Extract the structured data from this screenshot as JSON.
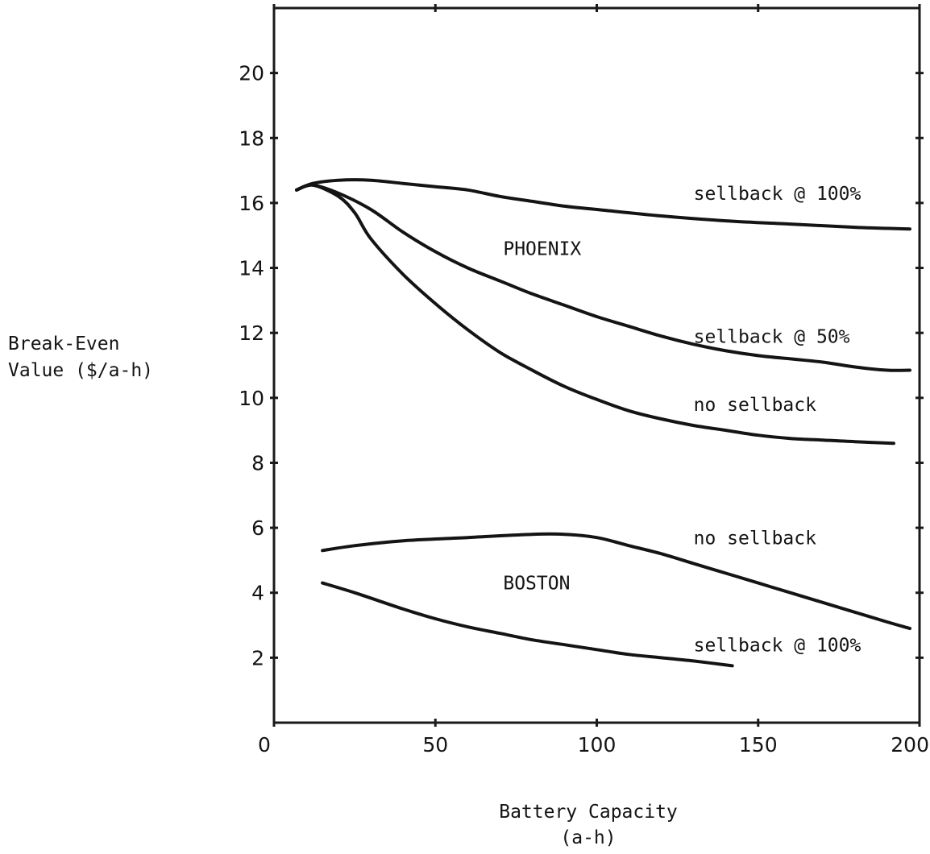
{
  "chart_data": {
    "type": "line",
    "title": "",
    "xlabel": [
      "Battery Capacity",
      "(a-h)"
    ],
    "ylabel": [
      "Break-Even",
      "Value ($/a-h)"
    ],
    "xlim": [
      0,
      200
    ],
    "ylim": [
      0,
      22
    ],
    "x_ticks": [
      "0",
      "50",
      "100",
      "150",
      "200"
    ],
    "y_ticks": [
      "2",
      "4",
      "6",
      "8",
      "10",
      "12",
      "14",
      "16",
      "18",
      "20"
    ],
    "grid": false,
    "legend": "none",
    "series": [
      {
        "group": "PHOENIX",
        "name": "sellback @ 100%",
        "x": [
          7,
          12,
          20,
          30,
          40,
          50,
          60,
          70,
          80,
          90,
          100,
          120,
          140,
          160,
          180,
          197
        ],
        "y": [
          16.4,
          16.6,
          16.7,
          16.7,
          16.6,
          16.5,
          16.4,
          16.2,
          16.05,
          15.9,
          15.8,
          15.6,
          15.45,
          15.35,
          15.25,
          15.2
        ]
      },
      {
        "group": "PHOENIX",
        "name": "sellback @ 50%",
        "x": [
          7,
          12,
          20,
          30,
          40,
          50,
          60,
          70,
          80,
          90,
          100,
          110,
          120,
          130,
          140,
          150,
          160,
          170,
          180,
          190,
          197
        ],
        "y": [
          16.4,
          16.55,
          16.3,
          15.8,
          15.1,
          14.5,
          14.0,
          13.6,
          13.2,
          12.85,
          12.5,
          12.2,
          11.9,
          11.65,
          11.45,
          11.3,
          11.2,
          11.1,
          10.95,
          10.85,
          10.85
        ]
      },
      {
        "group": "PHOENIX",
        "name": "no sellback",
        "x": [
          7,
          12,
          20,
          25,
          30,
          40,
          50,
          60,
          70,
          80,
          90,
          100,
          110,
          120,
          130,
          140,
          150,
          160,
          170,
          180,
          192
        ],
        "y": [
          16.4,
          16.55,
          16.2,
          15.7,
          14.9,
          13.8,
          12.9,
          12.1,
          11.4,
          10.85,
          10.35,
          9.95,
          9.6,
          9.35,
          9.15,
          9.0,
          8.85,
          8.75,
          8.7,
          8.65,
          8.6
        ]
      },
      {
        "group": "BOSTON",
        "name": "no sellback",
        "x": [
          15,
          25,
          40,
          60,
          80,
          90,
          100,
          110,
          120,
          130,
          140,
          150,
          160,
          170,
          180,
          190,
          197
        ],
        "y": [
          5.3,
          5.45,
          5.6,
          5.7,
          5.8,
          5.8,
          5.7,
          5.45,
          5.2,
          4.9,
          4.6,
          4.3,
          4.0,
          3.7,
          3.4,
          3.1,
          2.9
        ]
      },
      {
        "group": "BOSTON",
        "name": "sellback @ 100%",
        "x": [
          15,
          25,
          40,
          50,
          60,
          70,
          80,
          90,
          100,
          110,
          120,
          130,
          142
        ],
        "y": [
          4.3,
          4.0,
          3.5,
          3.2,
          2.95,
          2.75,
          2.55,
          2.4,
          2.25,
          2.1,
          2.0,
          1.9,
          1.75
        ]
      }
    ],
    "annotations": [
      {
        "text": "sellback @ 100%",
        "x": 130,
        "y": 16.1
      },
      {
        "text": "PHOENIX",
        "x": 71,
        "y": 14.4
      },
      {
        "text": "sellback @ 50%",
        "x": 130,
        "y": 11.7
      },
      {
        "text": "no sellback",
        "x": 130,
        "y": 9.6
      },
      {
        "text": "no sellback",
        "x": 130,
        "y": 5.5
      },
      {
        "text": "BOSTON",
        "x": 71,
        "y": 4.1
      },
      {
        "text": "sellback @ 100%",
        "x": 130,
        "y": 2.2
      }
    ]
  }
}
